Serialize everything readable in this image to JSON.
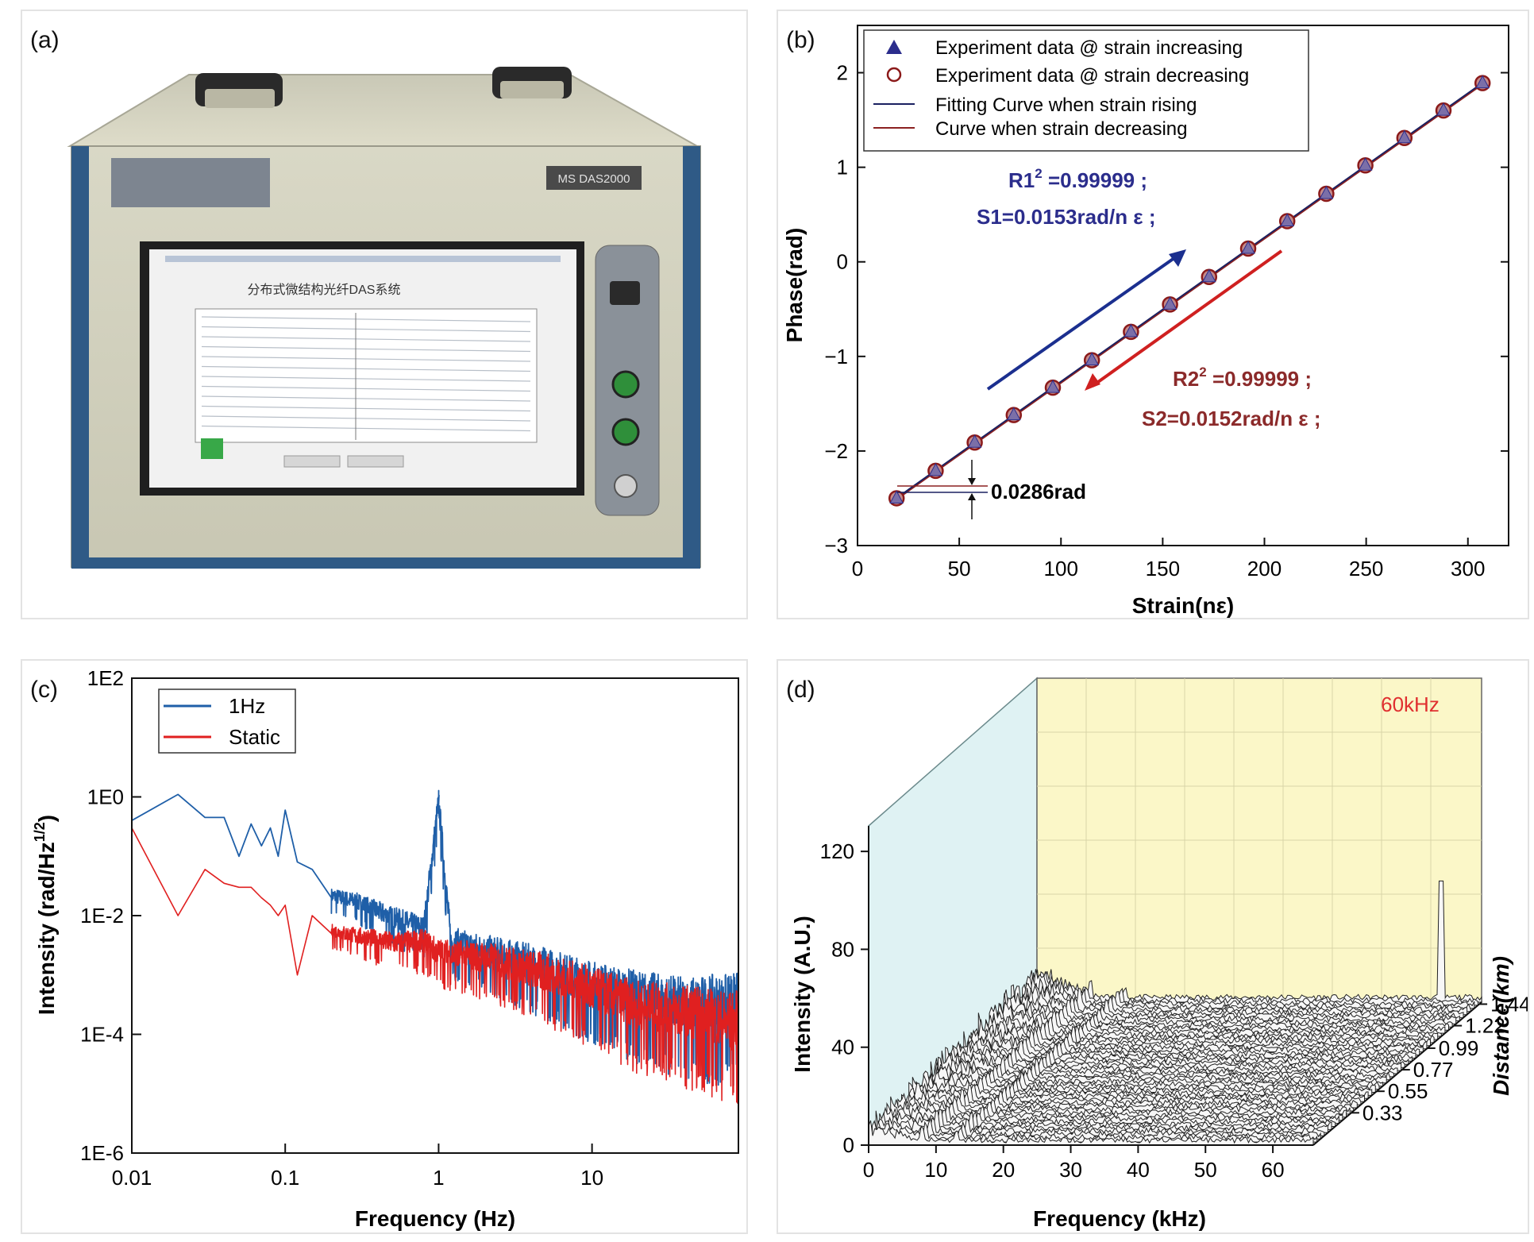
{
  "panels": {
    "a": {
      "label": "(a)",
      "device": {
        "model_label": "MS  DAS2000",
        "screen_title": "分布式微结构光纤DAS系统"
      }
    },
    "b": {
      "label": "(b)"
    },
    "c": {
      "label": "(c)"
    },
    "d": {
      "label": "(d)"
    }
  },
  "chart_data": [
    {
      "id": "b",
      "type": "scatter",
      "xlabel": "Strain(nε)",
      "ylabel": "Phase(rad)",
      "xlim": [
        0,
        320
      ],
      "ylim": [
        -3,
        2.5
      ],
      "xticks": [
        "0",
        "50",
        "100",
        "150",
        "200",
        "250",
        "300"
      ],
      "yticks": [
        "−3",
        "−2",
        "−1",
        "0",
        "1",
        "2"
      ],
      "legend_position": "top-left",
      "legend": [
        "Experiment data @ strain increasing",
        "Experiment data @ strain decreasing",
        "Fitting Curve when strain rising",
        "Curve when strain decreasing"
      ],
      "colors": {
        "increasing": "#2b2d8c",
        "decreasing": "#8b1a1a",
        "fit_rise": "#1a2060",
        "fit_dec": "#8b2020",
        "arrow_up": "#1b2f8f",
        "arrow_down": "#cf2020"
      },
      "series": [
        {
          "name": "Experiment data @ strain increasing",
          "marker": "triangle",
          "x": [
            19.2,
            38.4,
            57.6,
            76.8,
            96,
            115.2,
            134.4,
            153.6,
            172.8,
            192,
            211.2,
            230.4,
            249.6,
            268.8,
            288,
            307.2
          ],
          "y": [
            -2.5,
            -2.21,
            -1.91,
            -1.62,
            -1.33,
            -1.04,
            -0.74,
            -0.45,
            -0.16,
            0.14,
            0.43,
            0.72,
            1.02,
            1.31,
            1.6,
            1.89
          ]
        },
        {
          "name": "Experiment data @ strain decreasing",
          "marker": "circle",
          "x": [
            19.2,
            38.4,
            57.6,
            76.8,
            96,
            115.2,
            134.4,
            153.6,
            172.8,
            192,
            211.2,
            230.4,
            249.6,
            268.8,
            288,
            307.2
          ],
          "y": [
            -2.5,
            -2.21,
            -1.91,
            -1.62,
            -1.33,
            -1.04,
            -0.74,
            -0.45,
            -0.16,
            0.14,
            0.43,
            0.72,
            1.02,
            1.31,
            1.6,
            1.89
          ]
        }
      ],
      "annotations": {
        "r1": "R1",
        "r1_sup": "2",
        "r1_value": " =0.99999 ;",
        "s1": "S1=0.0153rad/n ε ;",
        "r2": "R2",
        "r2_sup": "2",
        "r2_value": " =0.99999 ;",
        "s2": "S2=0.0152rad/n ε ;",
        "offset": "0.0286rad"
      }
    },
    {
      "id": "c",
      "type": "line",
      "xlabel": "Frequency (Hz)",
      "ylabel": "Intensity (rad/Hz",
      "ylabel_sup": "1/2",
      "ylabel_end": ")",
      "x_scale": "log",
      "y_scale": "log",
      "xlim": [
        0.01,
        90
      ],
      "ylim": [
        1e-06,
        100
      ],
      "xticks": [
        "0.01",
        "0.1",
        "1",
        "10"
      ],
      "yticks": [
        "1E-6",
        "1E-4",
        "1E-2",
        "1E0",
        "1E2"
      ],
      "legend_position": "top-left",
      "colors": {
        "1Hz": "#1f5fa8",
        "Static": "#e02020"
      },
      "series": [
        {
          "name": "1Hz",
          "x": [
            0.01,
            0.02,
            0.03,
            0.04,
            0.05,
            0.06,
            0.07,
            0.08,
            0.09,
            0.1,
            0.12,
            0.15,
            0.2,
            0.3,
            0.5,
            0.8,
            1,
            1.2,
            2,
            5,
            10,
            20,
            40,
            80
          ],
          "y": [
            0.4,
            1.1,
            0.45,
            0.45,
            0.1,
            0.35,
            0.15,
            0.3,
            0.1,
            0.6,
            0.08,
            0.06,
            0.02,
            0.015,
            0.008,
            0.005,
            0.7,
            0.003,
            0.002,
            0.001,
            0.0005,
            0.0003,
            0.0002,
            0.0002
          ]
        },
        {
          "name": "Static",
          "x": [
            0.01,
            0.02,
            0.03,
            0.04,
            0.05,
            0.06,
            0.07,
            0.08,
            0.09,
            0.1,
            0.12,
            0.15,
            0.2,
            0.3,
            0.5,
            0.8,
            1,
            2,
            5,
            10,
            20,
            40,
            80
          ],
          "y": [
            0.3,
            0.01,
            0.06,
            0.035,
            0.03,
            0.03,
            0.02,
            0.015,
            0.01,
            0.015,
            0.001,
            0.01,
            0.005,
            0.004,
            0.003,
            0.003,
            0.002,
            0.0015,
            0.0008,
            0.0004,
            0.0002,
            0.00015,
            0.0001
          ]
        }
      ],
      "peak": {
        "x": 1,
        "y": 0.7
      }
    },
    {
      "id": "d",
      "type": "area",
      "xlabel": "Frequency (kHz)",
      "ylabel": "Intensity (A.U.)",
      "zlabel": "Distance(km)",
      "xlim": [
        0,
        66
      ],
      "ylim": [
        0,
        130
      ],
      "zlim": [
        0,
        1.46
      ],
      "xticks": [
        "0",
        "10",
        "20",
        "30",
        "40",
        "50",
        "60"
      ],
      "yticks": [
        "0",
        "40",
        "80",
        "120"
      ],
      "zticks": [
        "0.33",
        "0.55",
        "0.77",
        "0.99",
        "1.22",
        "1.44"
      ],
      "annotation": "60kHz",
      "peak": {
        "x": 60,
        "y": 110,
        "distance": 1.44
      },
      "colors": {
        "back_wall": "#fbf7c8",
        "side_wall": "#dff2f3",
        "traces": "#222222",
        "annotation": "#e03030"
      }
    }
  ]
}
